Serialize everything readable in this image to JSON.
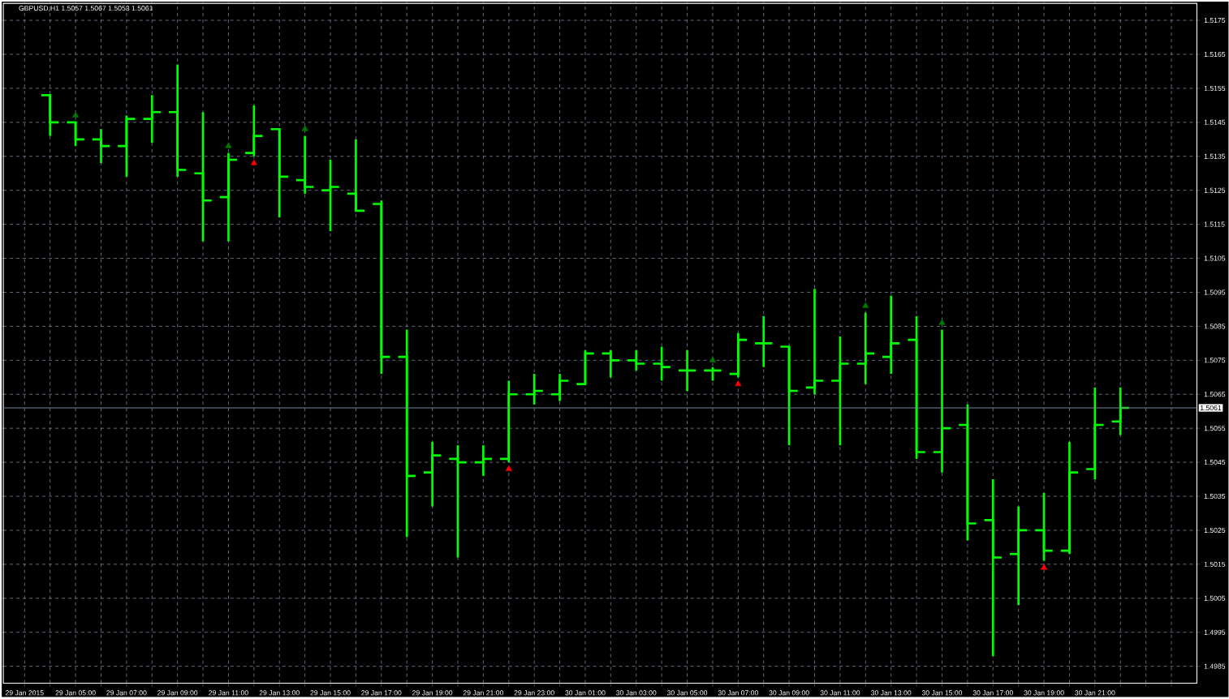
{
  "chart_data": {
    "type": "candlestick",
    "title": "GBPUSD,H1  1.5057 1.5067 1.5053 1.5061",
    "color": "#00ff00",
    "x": [
      "2015-01-29T04:00",
      "2015-01-29T05:00",
      "2015-01-29T06:00",
      "2015-01-29T07:00",
      "2015-01-29T08:00",
      "2015-01-29T09:00",
      "2015-01-29T10:00",
      "2015-01-29T11:00",
      "2015-01-29T12:00",
      "2015-01-29T13:00",
      "2015-01-29T14:00",
      "2015-01-29T15:00",
      "2015-01-29T16:00",
      "2015-01-29T17:00",
      "2015-01-29T18:00",
      "2015-01-29T19:00",
      "2015-01-29T20:00",
      "2015-01-29T21:00",
      "2015-01-29T22:00",
      "2015-01-29T23:00",
      "2015-01-30T00:00",
      "2015-01-30T01:00",
      "2015-01-30T02:00",
      "2015-01-30T03:00",
      "2015-01-30T04:00",
      "2015-01-30T05:00",
      "2015-01-30T06:00",
      "2015-01-30T07:00",
      "2015-01-30T08:00",
      "2015-01-30T09:00",
      "2015-01-30T10:00",
      "2015-01-30T11:00",
      "2015-01-30T12:00",
      "2015-01-30T13:00",
      "2015-01-30T14:00",
      "2015-01-30T15:00",
      "2015-01-30T16:00",
      "2015-01-30T17:00",
      "2015-01-30T18:00",
      "2015-01-30T19:00",
      "2015-01-30T20:00",
      "2015-01-30T21:00",
      "2015-01-30T22:00"
    ],
    "ohlc": [
      [
        1.5153,
        1.5153,
        1.5141,
        1.5145
      ],
      [
        1.5145,
        1.5145,
        1.5138,
        1.514
      ],
      [
        1.514,
        1.5143,
        1.5133,
        1.5138
      ],
      [
        1.5138,
        1.5147,
        1.5129,
        1.5146
      ],
      [
        1.5146,
        1.5153,
        1.5139,
        1.5148
      ],
      [
        1.5148,
        1.5162,
        1.5129,
        1.5131
      ],
      [
        1.513,
        1.5148,
        1.511,
        1.5122
      ],
      [
        1.5123,
        1.5136,
        1.511,
        1.5134
      ],
      [
        1.5136,
        1.515,
        1.5135,
        1.5141
      ],
      [
        1.5143,
        1.5143,
        1.5117,
        1.5129
      ],
      [
        1.5128,
        1.5141,
        1.5124,
        1.5126
      ],
      [
        1.5125,
        1.5134,
        1.5113,
        1.5126
      ],
      [
        1.5124,
        1.514,
        1.5119,
        1.5119
      ],
      [
        1.5121,
        1.5122,
        1.5071,
        1.5076
      ],
      [
        1.5076,
        1.5084,
        1.5023,
        1.5041
      ],
      [
        1.5042,
        1.5051,
        1.5032,
        1.5047
      ],
      [
        1.5046,
        1.505,
        1.5017,
        1.5045
      ],
      [
        1.5045,
        1.505,
        1.5041,
        1.5046
      ],
      [
        1.5046,
        1.5069,
        1.5045,
        1.5065
      ],
      [
        1.5065,
        1.5071,
        1.5062,
        1.5066
      ],
      [
        1.5065,
        1.5071,
        1.5063,
        1.5069
      ],
      [
        1.5068,
        1.5078,
        1.5068,
        1.5077
      ],
      [
        1.5077,
        1.5078,
        1.507,
        1.5075
      ],
      [
        1.5075,
        1.5078,
        1.5072,
        1.5074
      ],
      [
        1.5074,
        1.5079,
        1.5069,
        1.5073
      ],
      [
        1.5072,
        1.5078,
        1.5066,
        1.5072
      ],
      [
        1.5072,
        1.5073,
        1.5069,
        1.5072
      ],
      [
        1.5071,
        1.5083,
        1.507,
        1.5081
      ],
      [
        1.508,
        1.5088,
        1.5073,
        1.508
      ],
      [
        1.5079,
        1.5079,
        1.505,
        1.5066
      ],
      [
        1.5067,
        1.5096,
        1.5065,
        1.5069
      ],
      [
        1.5069,
        1.5082,
        1.505,
        1.5074
      ],
      [
        1.5074,
        1.5089,
        1.5068,
        1.5077
      ],
      [
        1.5076,
        1.5094,
        1.5071,
        1.508
      ],
      [
        1.5081,
        1.5088,
        1.5046,
        1.5048
      ],
      [
        1.5048,
        1.5084,
        1.5042,
        1.5055
      ],
      [
        1.5056,
        1.5062,
        1.5022,
        1.5027
      ],
      [
        1.5028,
        1.504,
        1.4988,
        1.5017
      ],
      [
        1.5018,
        1.5032,
        1.5003,
        1.5025
      ],
      [
        1.5025,
        1.5036,
        1.5016,
        1.5019
      ],
      [
        1.5019,
        1.5051,
        1.5018,
        1.5042
      ],
      [
        1.5043,
        1.5067,
        1.504,
        1.5056
      ],
      [
        1.5057,
        1.5067,
        1.5053,
        1.5061
      ]
    ],
    "series": [
      {
        "type": "scatter",
        "color": "#007800",
        "marker": "triangle",
        "x": [
          "2015-01-29T05:00",
          "2015-01-29T11:00",
          "2015-01-29T14:00",
          "2015-01-30T06:00",
          "2015-01-30T12:00",
          "2015-01-30T15:00"
        ],
        "values": [
          1.5147,
          1.5138,
          1.5143,
          1.5075,
          1.5091,
          1.5086
        ]
      },
      {
        "type": "scatter",
        "color": "#ff0000",
        "marker": "triangle",
        "x": [
          "2015-01-29T12:00",
          "2015-01-29T22:00",
          "2015-01-30T07:00",
          "2015-01-30T19:00"
        ],
        "values": [
          1.5133,
          1.5043,
          1.5068,
          1.5014
        ]
      }
    ],
    "xlim": [
      "2015-01-29T02:10",
      "2015-01-31T01:00"
    ],
    "xticks": [
      {
        "value": "2015-01-29T03:00",
        "label": "29 Jan 2015"
      },
      {
        "value": "2015-01-29T04:00",
        "label": null
      },
      {
        "value": "2015-01-29T05:00",
        "label": "29 Jan 05:00"
      },
      {
        "value": "2015-01-29T06:00",
        "label": null
      },
      {
        "value": "2015-01-29T07:00",
        "label": "29 Jan 07:00"
      },
      {
        "value": "2015-01-29T08:00",
        "label": null
      },
      {
        "value": "2015-01-29T09:00",
        "label": "29 Jan 09:00"
      },
      {
        "value": "2015-01-29T10:00",
        "label": null
      },
      {
        "value": "2015-01-29T11:00",
        "label": "29 Jan 11:00"
      },
      {
        "value": "2015-01-29T12:00",
        "label": null
      },
      {
        "value": "2015-01-29T13:00",
        "label": "29 Jan 13:00"
      },
      {
        "value": "2015-01-29T14:00",
        "label": null
      },
      {
        "value": "2015-01-29T15:00",
        "label": "29 Jan 15:00"
      },
      {
        "value": "2015-01-29T16:00",
        "label": null
      },
      {
        "value": "2015-01-29T17:00",
        "label": "29 Jan 17:00"
      },
      {
        "value": "2015-01-29T18:00",
        "label": null
      },
      {
        "value": "2015-01-29T19:00",
        "label": "29 Jan 19:00"
      },
      {
        "value": "2015-01-29T20:00",
        "label": null
      },
      {
        "value": "2015-01-29T21:00",
        "label": "29 Jan 21:00"
      },
      {
        "value": "2015-01-29T22:00",
        "label": null
      },
      {
        "value": "2015-01-29T23:00",
        "label": "29 Jan 23:00"
      },
      {
        "value": "2015-01-30T00:00",
        "label": null
      },
      {
        "value": "2015-01-30T01:00",
        "label": "30 Jan 01:00"
      },
      {
        "value": "2015-01-30T02:00",
        "label": null
      },
      {
        "value": "2015-01-30T03:00",
        "label": "30 Jan 03:00"
      },
      {
        "value": "2015-01-30T04:00",
        "label": null
      },
      {
        "value": "2015-01-30T05:00",
        "label": "30 Jan 05:00"
      },
      {
        "value": "2015-01-30T06:00",
        "label": null
      },
      {
        "value": "2015-01-30T07:00",
        "label": "30 Jan 07:00"
      },
      {
        "value": "2015-01-30T08:00",
        "label": null
      },
      {
        "value": "2015-01-30T09:00",
        "label": "30 Jan 09:00"
      },
      {
        "value": "2015-01-30T10:00",
        "label": null
      },
      {
        "value": "2015-01-30T11:00",
        "label": "30 Jan 11:00"
      },
      {
        "value": "2015-01-30T12:00",
        "label": null
      },
      {
        "value": "2015-01-30T13:00",
        "label": "30 Jan 13:00"
      },
      {
        "value": "2015-01-30T14:00",
        "label": null
      },
      {
        "value": "2015-01-30T15:00",
        "label": "30 Jan 15:00"
      },
      {
        "value": "2015-01-30T16:00",
        "label": null
      },
      {
        "value": "2015-01-30T17:00",
        "label": "30 Jan 17:00"
      },
      {
        "value": "2015-01-30T18:00",
        "label": null
      },
      {
        "value": "2015-01-30T19:00",
        "label": "30 Jan 19:00"
      },
      {
        "value": "2015-01-30T20:00",
        "label": null
      },
      {
        "value": "2015-01-30T21:00",
        "label": "30 Jan 21:00"
      },
      {
        "value": "2015-01-30T22:00",
        "label": null
      },
      {
        "value": "2015-01-30T23:00",
        "label": null
      },
      {
        "value": "2015-01-31T00:00",
        "label": null
      }
    ],
    "ylim": [
      1.498,
      1.518
    ],
    "yticks": [
      1.4985,
      1.4995,
      1.5005,
      1.5015,
      1.5025,
      1.5035,
      1.5045,
      1.5055,
      1.5065,
      1.5075,
      1.5085,
      1.5095,
      1.5105,
      1.5115,
      1.5125,
      1.5135,
      1.5145,
      1.5155,
      1.5165,
      1.5175
    ],
    "grid": true,
    "ref_lines": [
      {
        "axis": "y",
        "value": 1.5061,
        "label": "1.5061",
        "color": "#778899"
      }
    ]
  }
}
